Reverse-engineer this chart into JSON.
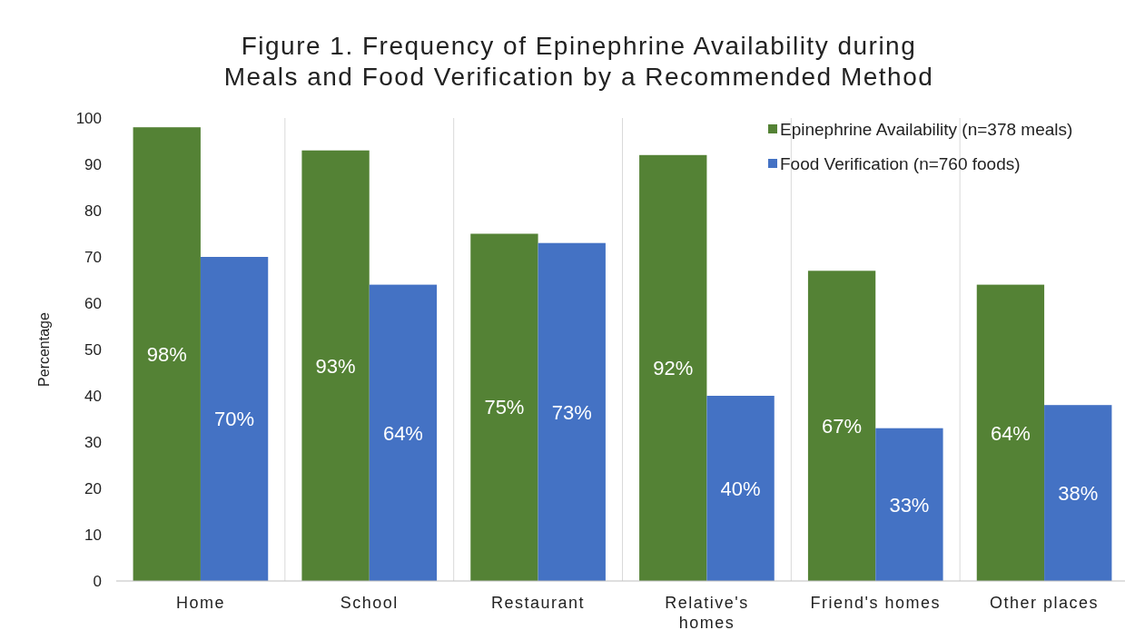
{
  "chart_data": {
    "type": "bar",
    "title": "Figure 1. Frequency of Epinephrine Availability during\nMeals and Food Verification by a Recommended Method",
    "ylabel": "Percentage",
    "categories": [
      "Home",
      "School",
      "Restaurant",
      "Relative's homes",
      "Friend's homes",
      "Other places"
    ],
    "series": [
      {
        "name": "Epinephrine Availability (n=378 meals)",
        "color": "#548235",
        "values": [
          98,
          93,
          75,
          92,
          67,
          64
        ],
        "value_labels": [
          "98%",
          "93%",
          "75%",
          "92%",
          "67%",
          "64%"
        ]
      },
      {
        "name": "Food Verification (n=760 foods)",
        "color": "#4472c4",
        "values": [
          70,
          64,
          73,
          40,
          33,
          38
        ],
        "value_labels": [
          "70%",
          "64%",
          "73%",
          "40%",
          "33%",
          "38%"
        ]
      }
    ],
    "ylim": [
      0,
      100
    ],
    "yticks": [
      0,
      10,
      20,
      30,
      40,
      50,
      60,
      70,
      80,
      90,
      100
    ],
    "grid": "x",
    "legend": "top right"
  }
}
